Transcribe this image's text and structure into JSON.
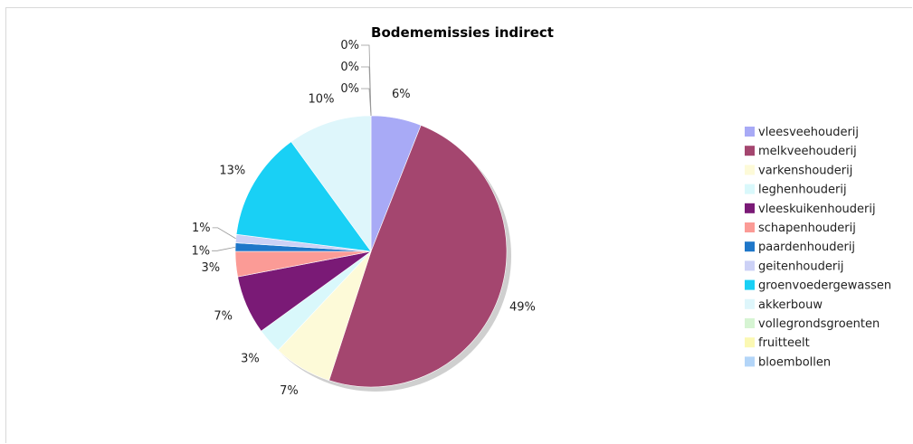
{
  "chart_data": {
    "type": "pie",
    "title": "Bodememissies indirect",
    "categories": [
      "vleesveehouderij",
      "melkveehouderij",
      "varkenshouderij",
      "leghenhouderij",
      "vleeskuikenhouderij",
      "schapenhouderij",
      "paardenhouderij",
      "geitenhouderij",
      "groenvoedergewassen",
      "akkerbouw",
      "vollegrondsgroenten",
      "fruitteelt",
      "bloembollen"
    ],
    "values": [
      6,
      49,
      7,
      3,
      7,
      3,
      1,
      1,
      13,
      10,
      0,
      0,
      0
    ],
    "labels": [
      "6%",
      "49%",
      "7%",
      "3%",
      "7%",
      "3%",
      "1%",
      "1%",
      "13%",
      "10%",
      "0%",
      "0%",
      "0%"
    ],
    "colors": [
      "#a8aaf6",
      "#a4466f",
      "#fdfad8",
      "#d9f8fb",
      "#7a1a76",
      "#fb9b96",
      "#1f77c9",
      "#ccd1f6",
      "#19d0f5",
      "#def6fb",
      "#d6f4d3",
      "#fbf8b3",
      "#b3d5f8"
    ],
    "legend_position": "right"
  }
}
